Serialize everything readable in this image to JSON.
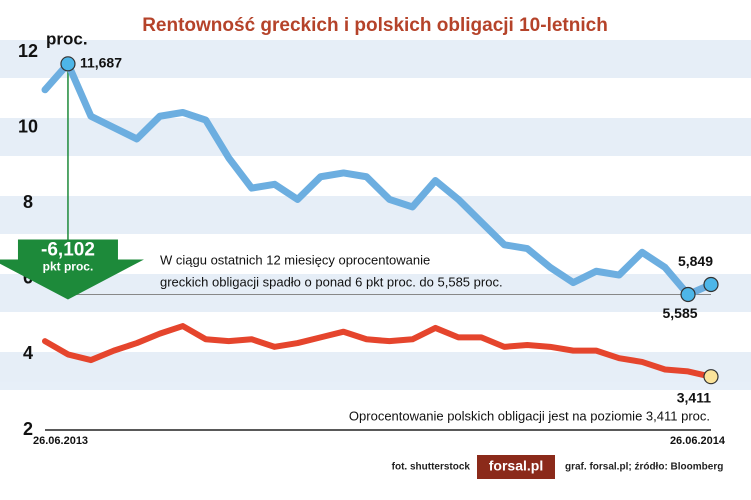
{
  "chart_data": {
    "type": "line",
    "title": "Rentowność greckich i polskich obligacji 10-letnich",
    "y_unit_label": "proc.",
    "categories": [
      "26.06.2013",
      null,
      null,
      null,
      null,
      null,
      null,
      null,
      null,
      null,
      null,
      null,
      null,
      null,
      null,
      null,
      null,
      null,
      null,
      null,
      null,
      null,
      null,
      null,
      null,
      null,
      null,
      null,
      null,
      "26.06.2014"
    ],
    "series": [
      {
        "color": "#6caee0",
        "values": [
          11.0,
          11.687,
          10.3,
          10.0,
          9.7,
          10.3,
          10.4,
          10.2,
          9.2,
          8.4,
          8.5,
          8.1,
          8.7,
          8.8,
          8.7,
          8.1,
          7.9,
          8.6,
          8.1,
          7.5,
          6.9,
          6.8,
          6.3,
          5.9,
          6.2,
          6.1,
          6.7,
          6.3,
          5.585,
          5.849
        ],
        "value_labels": [
          null,
          "11,687",
          null,
          null,
          null,
          null,
          null,
          null,
          null,
          null,
          null,
          null,
          null,
          null,
          null,
          null,
          null,
          null,
          null,
          null,
          null,
          null,
          null,
          null,
          null,
          null,
          null,
          null,
          "5,585",
          "5,849"
        ]
      },
      {
        "color": "#e5452d",
        "values": [
          4.35,
          4.0,
          3.85,
          4.1,
          4.3,
          4.55,
          4.75,
          4.4,
          4.35,
          4.4,
          4.2,
          4.3,
          4.45,
          4.6,
          4.4,
          4.35,
          4.4,
          4.7,
          4.45,
          4.45,
          4.2,
          4.25,
          4.2,
          4.1,
          4.1,
          3.9,
          3.8,
          3.6,
          3.55,
          3.411
        ],
        "value_labels": [
          null,
          null,
          null,
          null,
          null,
          null,
          null,
          null,
          null,
          null,
          null,
          null,
          null,
          null,
          null,
          null,
          null,
          null,
          null,
          null,
          null,
          null,
          null,
          null,
          null,
          null,
          null,
          null,
          null,
          "3,411"
        ]
      }
    ],
    "ylim": [
      2,
      12
    ],
    "yticks": [
      2,
      4,
      6,
      8,
      10,
      12
    ],
    "drop_annotation": {
      "value": -6.102,
      "label": "-6,102",
      "unit": "pkt proc."
    },
    "notes": [
      "W ciągu ostatnich 12 miesięcy oprocentowanie",
      "greckich obligacji spadło o ponad 6 pkt proc. do 5,585 proc.",
      "Oprocentowanie polskich obligacji jest na poziomie 3,411 proc."
    ],
    "footer": {
      "photo": "fot. shutterstock",
      "logo": "forsal.pl",
      "source": "graf. forsal.pl;  źródło: Bloomberg"
    }
  }
}
